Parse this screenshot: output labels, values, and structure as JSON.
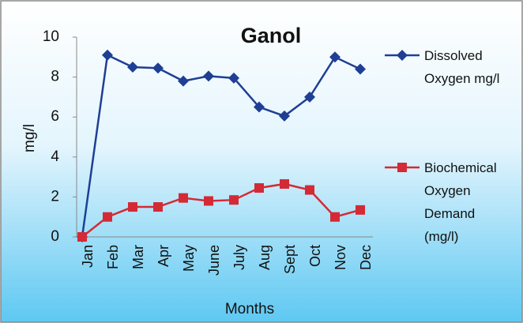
{
  "chart_data": {
    "type": "line",
    "title": "Ganol",
    "x_label": "Months",
    "y_label": "mg/l",
    "categories": [
      "Jan",
      "Feb",
      "Mar",
      "Apr",
      "May",
      "June",
      "July",
      "Aug",
      "Sept",
      "Oct",
      "Nov",
      "Dec"
    ],
    "series": [
      {
        "name": "Dissolved Oxygen mg/l",
        "color": "#1f3f94",
        "marker": "diamond",
        "values": [
          0,
          9.1,
          8.5,
          8.45,
          7.8,
          8.05,
          7.95,
          6.5,
          6.05,
          7.0,
          9.0,
          8.4
        ]
      },
      {
        "name": "Biochemical Oxygen Demand (mg/l)",
        "color": "#d42a35",
        "marker": "square",
        "values": [
          0,
          1.0,
          1.5,
          1.5,
          1.95,
          1.8,
          1.85,
          2.45,
          2.65,
          2.35,
          1.0,
          1.35
        ]
      }
    ],
    "ylim": [
      0,
      10
    ],
    "yticks": [
      0,
      2,
      4,
      6,
      8,
      10
    ],
    "grid": false,
    "legend": "right"
  }
}
